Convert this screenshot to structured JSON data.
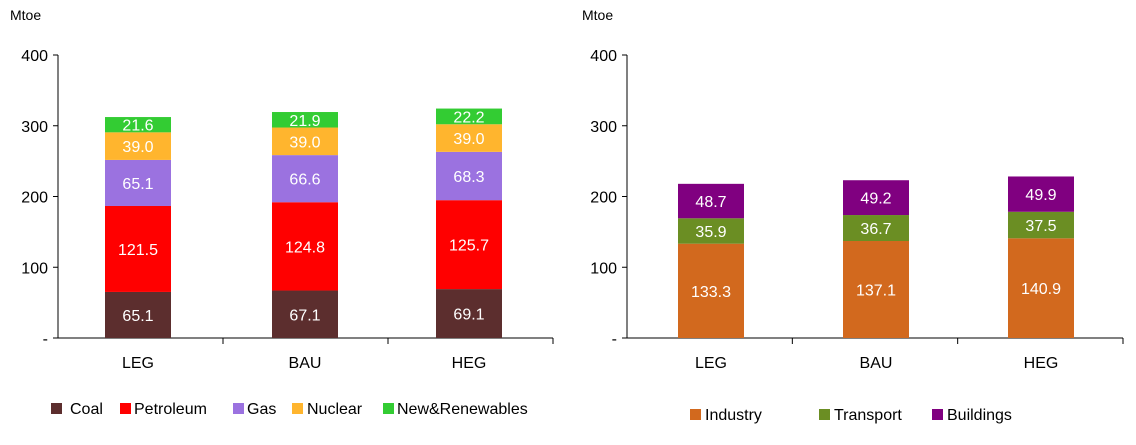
{
  "chart_data": [
    {
      "type": "bar",
      "stacked": true,
      "unit_label": "Mtoe",
      "categories": [
        "LEG",
        "BAU",
        "HEG"
      ],
      "ylim": [
        0,
        400
      ],
      "yticks": [
        0,
        100,
        200,
        300,
        400
      ],
      "ytick_labels": [
        "-",
        "100",
        "200",
        "300",
        "400"
      ],
      "series": [
        {
          "name": "Coal",
          "color": "#5c2e2e",
          "values": [
            65.1,
            67.1,
            69.1
          ]
        },
        {
          "name": "Petroleum",
          "color": "#ff0000",
          "values": [
            121.5,
            124.8,
            125.7
          ]
        },
        {
          "name": "Gas",
          "color": "#9b72e0",
          "values": [
            65.1,
            66.6,
            68.3
          ]
        },
        {
          "name": "Nuclear",
          "color": "#ffb52e",
          "values": [
            39.0,
            39.0,
            39.0
          ]
        },
        {
          "name": "New&Renewables",
          "color": "#33cc33",
          "values": [
            21.6,
            21.9,
            22.2
          ]
        }
      ],
      "legend_position": "bottom"
    },
    {
      "type": "bar",
      "stacked": true,
      "unit_label": "Mtoe",
      "categories": [
        "LEG",
        "BAU",
        "HEG"
      ],
      "ylim": [
        0,
        400
      ],
      "yticks": [
        0,
        100,
        200,
        300,
        400
      ],
      "ytick_labels": [
        "-",
        "100",
        "200",
        "300",
        "400"
      ],
      "series": [
        {
          "name": "Industry",
          "color": "#d2691e",
          "values": [
            133.3,
            137.1,
            140.9
          ]
        },
        {
          "name": "Transport",
          "color": "#6b8e23",
          "values": [
            35.9,
            36.7,
            37.5
          ]
        },
        {
          "name": "Buildings",
          "color": "#800080",
          "values": [
            48.7,
            49.2,
            49.9
          ]
        }
      ],
      "legend_position": "bottom"
    }
  ]
}
